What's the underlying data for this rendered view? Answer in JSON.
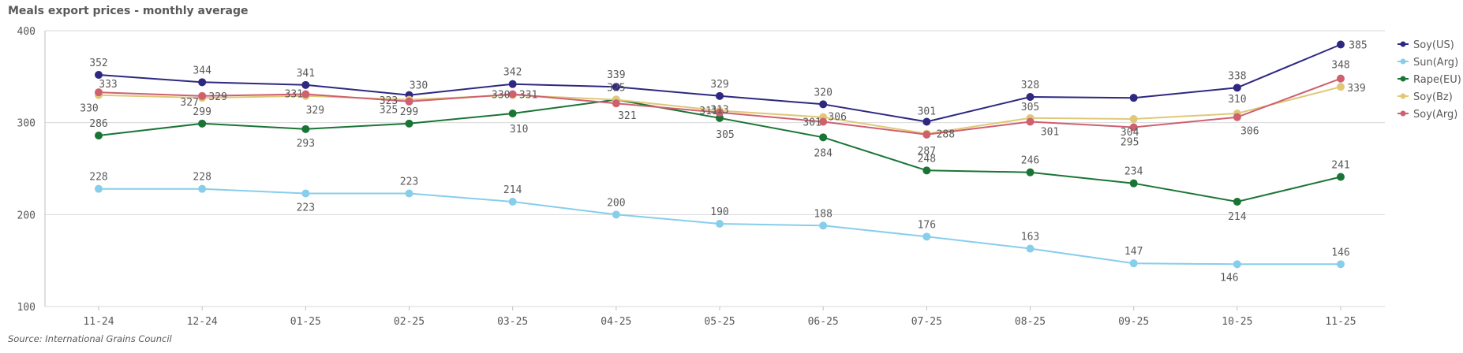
{
  "chart_data": {
    "type": "line",
    "title": "Meals export prices - monthly average",
    "source": "Source: International Grains Council",
    "xlabel": "",
    "ylabel": "",
    "categories": [
      "11-24",
      "12-24",
      "01-25",
      "02-25",
      "03-25",
      "04-25",
      "05-25",
      "06-25",
      "07-25",
      "08-25",
      "09-25",
      "10-25",
      "11-25"
    ],
    "ylim": [
      100,
      400
    ],
    "yticks": [
      100,
      200,
      300,
      400
    ],
    "grid": true,
    "legend_position": "right",
    "series": [
      {
        "name": "Soy(US)",
        "color": "#2e2880",
        "values": [
          352,
          344,
          341,
          330,
          342,
          339,
          329,
          320,
          301,
          328,
          327,
          338,
          385
        ],
        "label_text": [
          "352",
          "344",
          "341",
          "330",
          "342",
          "339",
          "329",
          "320",
          "301",
          "328",
          "",
          "338",
          "385"
        ]
      },
      {
        "name": "Sun(Arg)",
        "color": "#87ceeb",
        "values": [
          228,
          228,
          223,
          223,
          214,
          200,
          190,
          188,
          176,
          163,
          147,
          146,
          146
        ],
        "label_text": [
          "228",
          "228",
          "223",
          "223",
          "214",
          "200",
          "190",
          "188",
          "176",
          "163",
          "147",
          "146",
          "146"
        ]
      },
      {
        "name": "Rape(EU)",
        "color": "#1a7535",
        "values": [
          286,
          299,
          293,
          299,
          310,
          325,
          305,
          284,
          248,
          246,
          234,
          214,
          241
        ],
        "label_text": [
          "286",
          "299",
          "293",
          "299",
          "310",
          "325",
          "305",
          "284",
          "248",
          "246",
          "234",
          "214",
          "241"
        ]
      },
      {
        "name": "Soy(Bz)",
        "color": "#e0c878",
        "values": [
          330,
          327,
          329,
          325,
          330,
          325,
          313,
          306,
          288,
          305,
          304,
          310,
          339
        ],
        "label_text": [
          "330",
          "327",
          "329",
          "325",
          "330",
          "",
          "313",
          "306",
          "288",
          "305",
          "304",
          "310",
          "339"
        ]
      },
      {
        "name": "Soy(Arg)",
        "color": "#cf6070",
        "values": [
          333,
          329,
          331,
          323,
          331,
          321,
          311,
          301,
          287,
          301,
          295,
          306,
          348
        ],
        "label_text": [
          "333",
          "329",
          "331",
          "323",
          "331",
          "321",
          "311",
          "301",
          "287",
          "301",
          "295",
          "306",
          "348"
        ]
      }
    ]
  }
}
